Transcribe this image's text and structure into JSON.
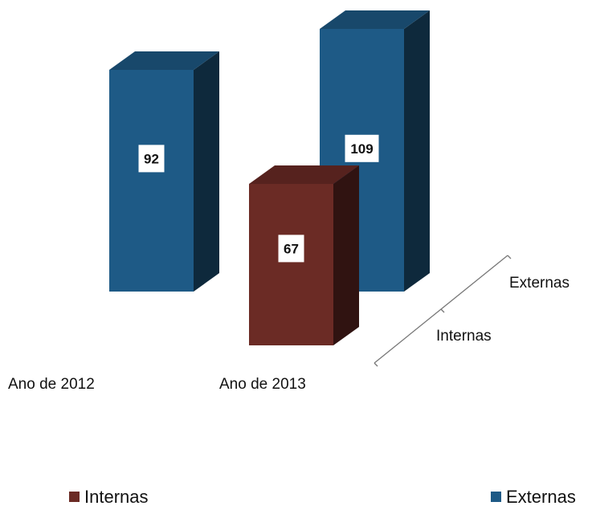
{
  "chart_data": {
    "type": "bar",
    "style": "3d-columns",
    "categories": [
      "Ano de 2012",
      "Ano de 2013"
    ],
    "series": [
      {
        "name": "Internas",
        "values": [
          null,
          67
        ],
        "color": "#6b2b25"
      },
      {
        "name": "Externas",
        "values": [
          92,
          109
        ],
        "color": "#1e5a86"
      }
    ],
    "depth_axis_labels": [
      "Internas",
      "Externas"
    ],
    "data_labels": [
      "92",
      "67",
      "109"
    ],
    "legend": {
      "position": "bottom",
      "items": [
        "Internas",
        "Externas"
      ]
    },
    "title": "",
    "xlabel": "",
    "ylabel": "",
    "grid": false
  }
}
